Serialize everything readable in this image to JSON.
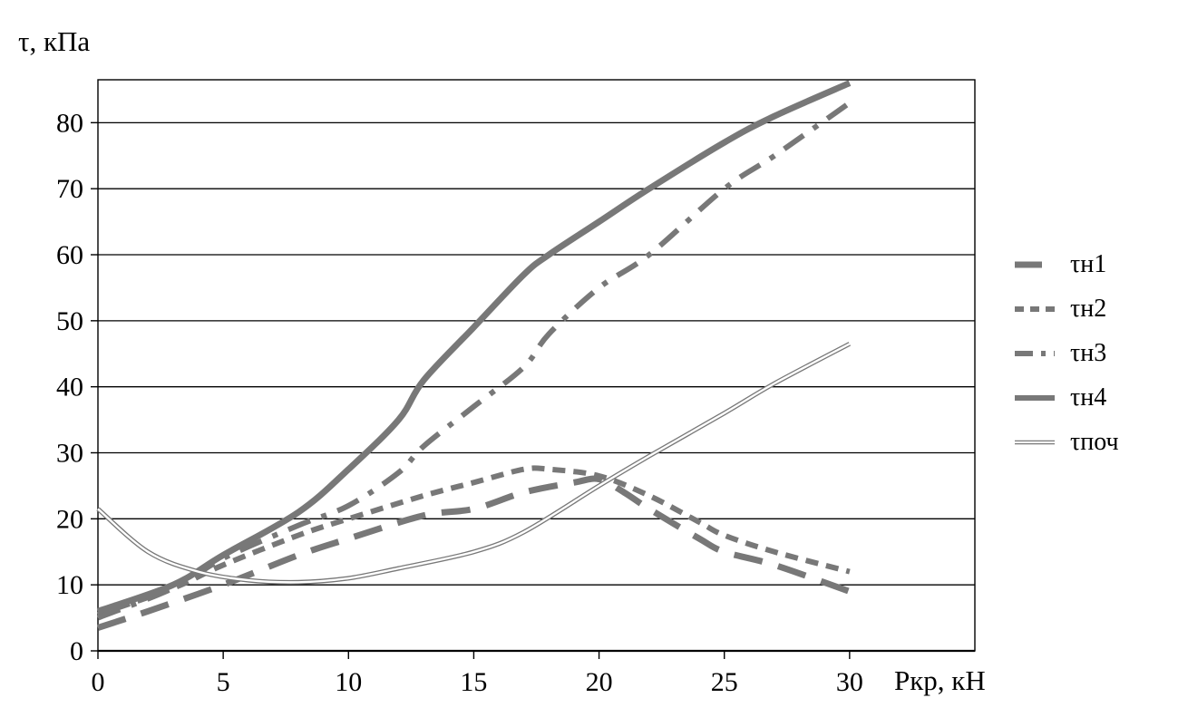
{
  "chart_data": {
    "type": "line",
    "title": "",
    "xlabel": "Ркр, кН",
    "ylabel": "τ, кПа",
    "xlim": [
      0,
      35
    ],
    "ylim": [
      0,
      86.5
    ],
    "xticks": [
      0,
      5,
      10,
      15,
      20,
      25,
      30
    ],
    "yticks": [
      0,
      10,
      20,
      30,
      40,
      50,
      60,
      70,
      80
    ],
    "grid": "horizontal",
    "legend_position": "right",
    "colors": {
      "line": "#787878",
      "axis": "#000000",
      "background": "#ffffff"
    },
    "series": [
      {
        "name": "τн1",
        "style": "long-dash",
        "points": [
          [
            0,
            3.5
          ],
          [
            2,
            6
          ],
          [
            5,
            10
          ],
          [
            8,
            14.5
          ],
          [
            10,
            17
          ],
          [
            13,
            20.5
          ],
          [
            15,
            21.5
          ],
          [
            17,
            24
          ],
          [
            19,
            25.5
          ],
          [
            20,
            26
          ],
          [
            21,
            24
          ],
          [
            22,
            21.5
          ],
          [
            24,
            17
          ],
          [
            25,
            15
          ],
          [
            27,
            13
          ],
          [
            30,
            9
          ]
        ]
      },
      {
        "name": "τн2",
        "style": "short-dash",
        "points": [
          [
            0,
            5.5
          ],
          [
            3,
            9.5
          ],
          [
            5,
            13
          ],
          [
            8,
            17.5
          ],
          [
            10,
            20
          ],
          [
            13,
            23.5
          ],
          [
            15,
            25.5
          ],
          [
            17,
            27.5
          ],
          [
            18,
            27.5
          ],
          [
            20,
            26.5
          ],
          [
            22,
            23.5
          ],
          [
            24,
            19.5
          ],
          [
            25,
            17.5
          ],
          [
            27,
            15
          ],
          [
            30,
            12
          ]
        ]
      },
      {
        "name": "τн3",
        "style": "dash-dot",
        "points": [
          [
            0,
            5
          ],
          [
            3,
            9.5
          ],
          [
            5,
            14
          ],
          [
            8,
            19
          ],
          [
            10,
            22
          ],
          [
            12,
            27
          ],
          [
            13,
            31
          ],
          [
            15,
            37
          ],
          [
            17,
            43
          ],
          [
            18,
            48
          ],
          [
            20,
            55
          ],
          [
            22,
            60
          ],
          [
            25,
            70
          ],
          [
            27,
            75
          ],
          [
            30,
            83
          ]
        ]
      },
      {
        "name": "τн4",
        "style": "solid",
        "points": [
          [
            0,
            6
          ],
          [
            3,
            10
          ],
          [
            5,
            14.5
          ],
          [
            8,
            21
          ],
          [
            10,
            27.5
          ],
          [
            12,
            35
          ],
          [
            13,
            41
          ],
          [
            15,
            49
          ],
          [
            17,
            57
          ],
          [
            18,
            60
          ],
          [
            20,
            65
          ],
          [
            22,
            70
          ],
          [
            25,
            77
          ],
          [
            27,
            81
          ],
          [
            30,
            86
          ]
        ]
      },
      {
        "name": "τпоч",
        "style": "double-thin",
        "points": [
          [
            0,
            21.5
          ],
          [
            2,
            15
          ],
          [
            4,
            12
          ],
          [
            6,
            10.7
          ],
          [
            8,
            10.4
          ],
          [
            10,
            11
          ],
          [
            12,
            12.5
          ],
          [
            15,
            15
          ],
          [
            17,
            18
          ],
          [
            20,
            25
          ],
          [
            22,
            29.5
          ],
          [
            25,
            36
          ],
          [
            27,
            40.5
          ],
          [
            30,
            46.5
          ]
        ]
      }
    ]
  }
}
